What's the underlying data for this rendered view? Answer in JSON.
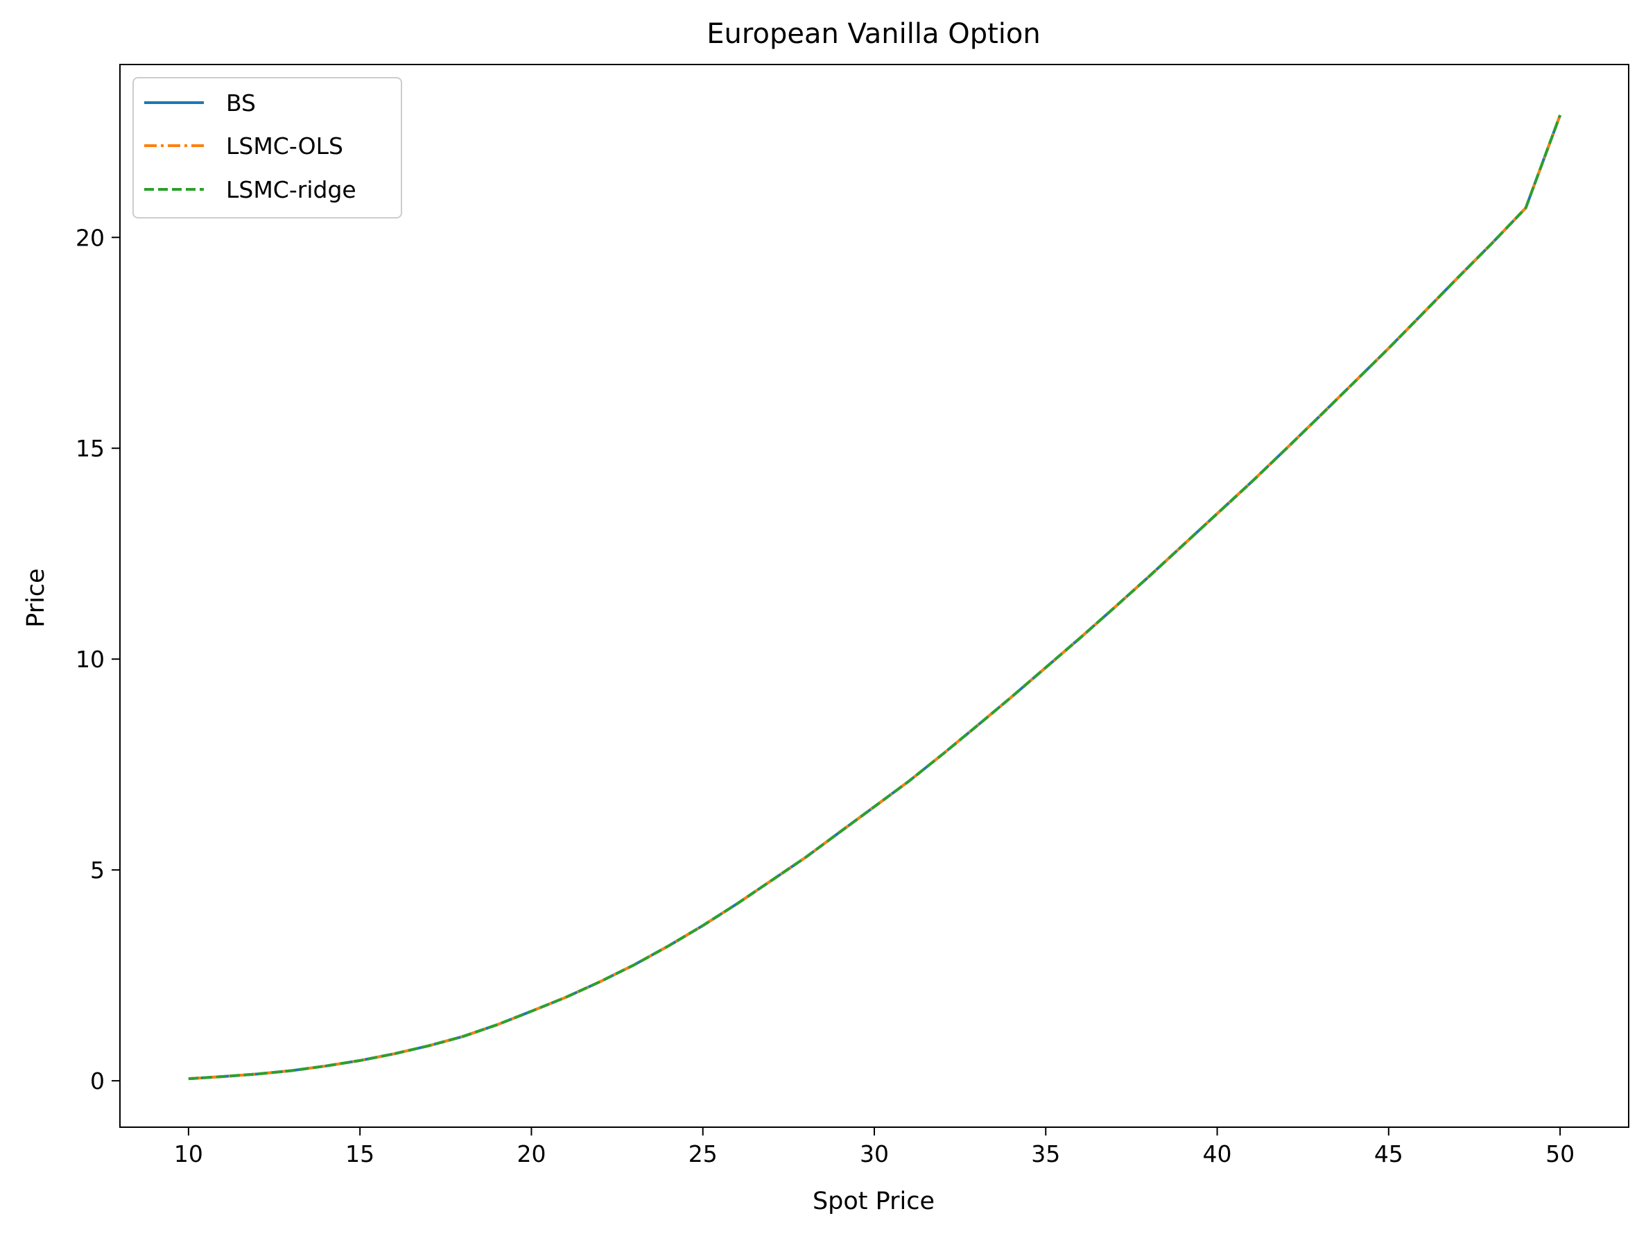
{
  "chart_data": {
    "type": "line",
    "title": "European Vanilla Option",
    "xlabel": "Spot Price",
    "ylabel": "Price",
    "xlim": [
      8,
      52
    ],
    "ylim": [
      -1.1,
      24.1
    ],
    "xticks": [
      10,
      15,
      20,
      25,
      30,
      35,
      40,
      45,
      50
    ],
    "yticks": [
      0,
      5,
      10,
      15,
      20
    ],
    "grid": false,
    "legend_position": "top-left",
    "x": [
      10,
      11,
      12,
      13,
      14,
      15,
      16,
      17,
      18,
      19,
      20,
      21,
      22,
      23,
      24,
      25,
      26,
      27,
      28,
      29,
      30,
      31,
      32,
      33,
      34,
      35,
      36,
      37,
      38,
      39,
      40,
      41,
      42,
      43,
      44,
      45,
      46,
      47,
      48,
      49,
      50
    ],
    "series": [
      {
        "name": "BS",
        "color": "#1f77b4",
        "style": "solid",
        "values": [
          0.05,
          0.1,
          0.16,
          0.24,
          0.35,
          0.48,
          0.64,
          0.83,
          1.05,
          1.33,
          1.65,
          1.98,
          2.35,
          2.75,
          3.2,
          3.68,
          4.2,
          4.75,
          5.3,
          5.9,
          6.5,
          7.1,
          7.75,
          8.42,
          9.1,
          9.8,
          10.5,
          11.22,
          11.95,
          12.7,
          13.45,
          14.2,
          14.98,
          15.77,
          16.57,
          17.37,
          18.2,
          19.03,
          19.85,
          20.7,
          22.9
        ]
      },
      {
        "name": "LSMC-OLS",
        "color": "#ff7f0e",
        "style": "dashdot",
        "values": [
          0.05,
          0.1,
          0.16,
          0.24,
          0.35,
          0.48,
          0.64,
          0.83,
          1.05,
          1.33,
          1.65,
          1.98,
          2.35,
          2.75,
          3.2,
          3.68,
          4.2,
          4.75,
          5.3,
          5.9,
          6.5,
          7.1,
          7.75,
          8.42,
          9.1,
          9.8,
          10.5,
          11.22,
          11.95,
          12.7,
          13.45,
          14.2,
          14.98,
          15.77,
          16.57,
          17.37,
          18.2,
          19.03,
          19.85,
          20.7,
          22.9
        ]
      },
      {
        "name": "LSMC-ridge",
        "color": "#2ca02c",
        "style": "dashed",
        "values": [
          0.05,
          0.1,
          0.16,
          0.24,
          0.35,
          0.48,
          0.64,
          0.83,
          1.05,
          1.33,
          1.65,
          1.98,
          2.35,
          2.75,
          3.2,
          3.68,
          4.2,
          4.75,
          5.3,
          5.9,
          6.5,
          7.1,
          7.75,
          8.42,
          9.1,
          9.8,
          10.5,
          11.22,
          11.95,
          12.7,
          13.45,
          14.2,
          14.98,
          15.77,
          16.57,
          17.37,
          18.2,
          19.03,
          19.85,
          20.7,
          22.9
        ]
      }
    ]
  }
}
